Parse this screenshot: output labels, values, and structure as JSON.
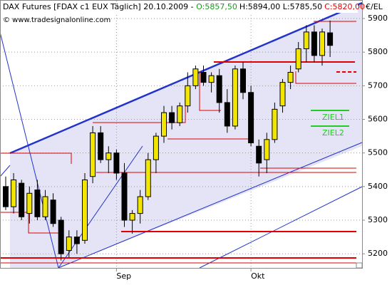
{
  "chart_data": {
    "type": "candlestick",
    "title": "DAX Futures [FDAX c1 EUX  Täglich] 20.10.2009 - ",
    "title_open": "O:5857,50",
    "title_high_low": "H:5894,00 L:5785,50",
    "title_close": "C:5820,00",
    "watermark": "© www.tradesignalonline.com",
    "y_unit": "€/EL",
    "annotations": [
      "ZIEL1",
      "ZIEL2"
    ],
    "categories": [
      null,
      null,
      null,
      null,
      null,
      null,
      null,
      null,
      null,
      null,
      null,
      null,
      null,
      null,
      "Sep",
      null,
      null,
      null,
      null,
      null,
      null,
      null,
      null,
      null,
      null,
      null,
      null,
      null,
      null,
      null,
      null,
      "Okt",
      null,
      null,
      null,
      null,
      null,
      null,
      null,
      null,
      null,
      null
    ],
    "open": [
      5400,
      5340,
      5410,
      5320,
      5390,
      5310,
      5360,
      5300,
      5210,
      5250,
      5240,
      5430,
      5560,
      5480,
      5500,
      5440,
      5300,
      5320,
      5370,
      5480,
      5550,
      5620,
      5590,
      5640,
      5700,
      5740,
      5710,
      5730,
      5650,
      5580,
      5750,
      5680,
      5520,
      5480,
      5540,
      5640,
      5710,
      5750,
      5810,
      5860,
      5790,
      5857.5
    ],
    "high": [
      5430,
      5440,
      5420,
      5400,
      5420,
      5390,
      5380,
      5310,
      5270,
      5270,
      5440,
      5580,
      5580,
      5520,
      5510,
      5470,
      5330,
      5390,
      5500,
      5560,
      5640,
      5640,
      5650,
      5740,
      5760,
      5760,
      5740,
      5750,
      5690,
      5760,
      5770,
      5700,
      5540,
      5560,
      5650,
      5720,
      5760,
      5830,
      5880,
      5880,
      5870,
      5894
    ],
    "low": [
      5330,
      5320,
      5300,
      5290,
      5300,
      5300,
      5280,
      5180,
      5190,
      5200,
      5230,
      5410,
      5470,
      5440,
      5420,
      5280,
      5260,
      5290,
      5360,
      5440,
      5530,
      5570,
      5580,
      5620,
      5690,
      5700,
      5680,
      5620,
      5560,
      5570,
      5660,
      5520,
      5430,
      5440,
      5530,
      5620,
      5690,
      5740,
      5770,
      5770,
      5760,
      5785.5
    ],
    "close": [
      5340,
      5420,
      5310,
      5380,
      5310,
      5370,
      5290,
      5200,
      5250,
      5230,
      5420,
      5560,
      5480,
      5500,
      5440,
      5300,
      5320,
      5370,
      5480,
      5550,
      5620,
      5590,
      5640,
      5700,
      5750,
      5710,
      5730,
      5650,
      5580,
      5750,
      5680,
      5530,
      5470,
      5540,
      5630,
      5710,
      5740,
      5810,
      5860,
      5790,
      5860,
      5820
    ],
    "up_color": "#f2e600",
    "down_color": "#000000",
    "ylim": [
      5158,
      5953
    ],
    "yticks": [
      5200,
      5300,
      5400,
      5500,
      5600,
      5700,
      5800,
      5900
    ],
    "grid": true
  }
}
